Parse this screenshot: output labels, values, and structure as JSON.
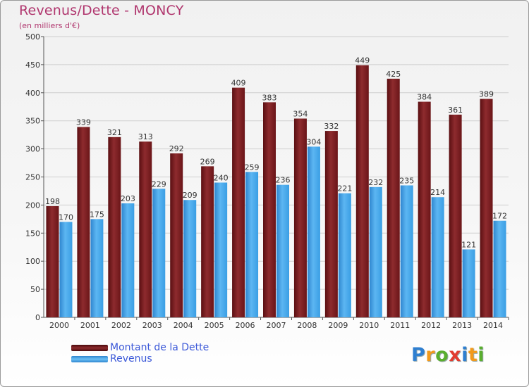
{
  "header": {
    "title": "Revenus/Dette - MONCY",
    "subtitle": "(en milliers d'€)"
  },
  "chart_data": {
    "type": "bar",
    "title": "Revenus/Dette - MONCY",
    "ylabel": "(en milliers d'€)",
    "xlabel": "",
    "ylim": [
      0,
      500
    ],
    "yticks": [
      0,
      50,
      100,
      150,
      200,
      250,
      300,
      350,
      400,
      450,
      500
    ],
    "grid": true,
    "legend": "bottom-left",
    "categories": [
      "2000",
      "2001",
      "2002",
      "2003",
      "2004",
      "2005",
      "2006",
      "2007",
      "2008",
      "2009",
      "2010",
      "2011",
      "2012",
      "2013",
      "2014"
    ],
    "series": [
      {
        "name": "Montant de la Dette",
        "color": "#7a1f22",
        "values": [
          198,
          339,
          321,
          313,
          292,
          269,
          409,
          383,
          354,
          332,
          449,
          425,
          384,
          361,
          389
        ]
      },
      {
        "name": "Revenus",
        "color": "#3a9ee4",
        "values": [
          170,
          175,
          203,
          229,
          209,
          240,
          259,
          236,
          304,
          221,
          232,
          235,
          214,
          121,
          172
        ]
      }
    ]
  },
  "logo": {
    "letters": [
      "P",
      "r",
      "o",
      "x",
      "i",
      "t",
      "i"
    ],
    "colors": [
      "#2f7fd0",
      "#f29a1c",
      "#5aae2e",
      "#e23b2f",
      "#2f7fd0",
      "#f29a1c",
      "#5aae2e"
    ]
  }
}
